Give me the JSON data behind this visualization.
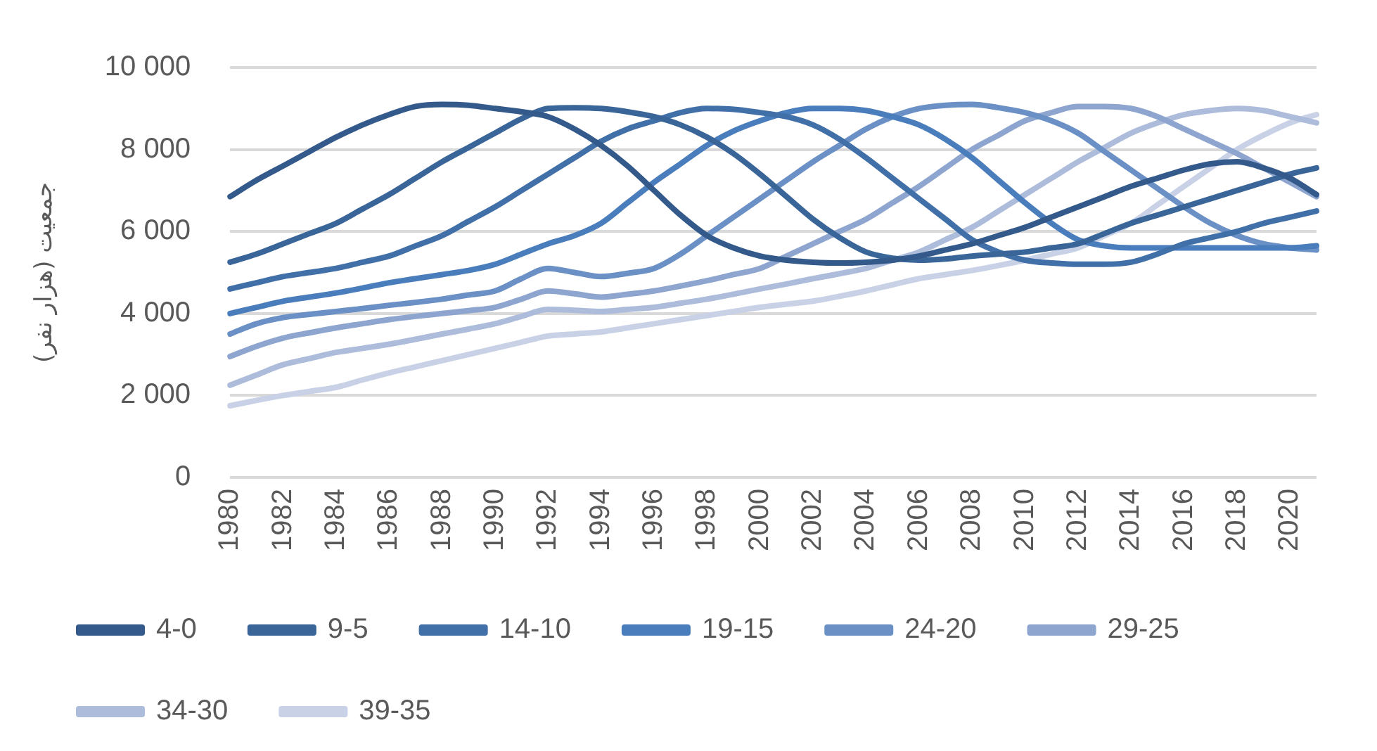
{
  "chart_data": {
    "type": "line",
    "ylabel": "جمعیت (هزار نفر)",
    "categories": [
      "1980",
      null,
      "1982",
      null,
      "1984",
      null,
      "1986",
      null,
      "1988",
      null,
      "1990",
      null,
      "1992",
      null,
      "1994",
      null,
      "1996",
      null,
      "1998",
      null,
      "2000",
      null,
      "2002",
      null,
      "2004",
      null,
      "2006",
      null,
      "2008",
      null,
      "2010",
      null,
      "2012",
      null,
      "2014",
      null,
      "2016",
      null,
      "2018",
      null,
      "2020",
      null
    ],
    "series": [
      {
        "name": "4-0",
        "color": "#335a8a",
        "values": [
          6850,
          7250,
          7600,
          7950,
          8300,
          8600,
          8850,
          9050,
          9100,
          9080,
          9000,
          8920,
          8800,
          8500,
          8100,
          7600,
          7000,
          6400,
          5900,
          5600,
          5400,
          5300,
          5250,
          5230,
          5250,
          5300,
          5400,
          5550,
          5700,
          5900,
          6100,
          6350,
          6600,
          6850,
          7100,
          7300,
          7500,
          7650,
          7700,
          7550,
          7300,
          6900
        ]
      },
      {
        "name": "9-5",
        "color": "#3a6599",
        "values": [
          5250,
          5450,
          5700,
          5950,
          6200,
          6550,
          6900,
          7300,
          7700,
          8050,
          8400,
          8750,
          9000,
          9020,
          9000,
          8920,
          8800,
          8600,
          8300,
          7900,
          7400,
          6850,
          6300,
          5850,
          5500,
          5350,
          5300,
          5330,
          5400,
          5450,
          5500,
          5600,
          5700,
          5950,
          6200,
          6400,
          6600,
          6800,
          7000,
          7200,
          7400,
          7550
        ]
      },
      {
        "name": "14-10",
        "color": "#416fa8",
        "values": [
          4600,
          4750,
          4900,
          5000,
          5100,
          5250,
          5400,
          5650,
          5900,
          6250,
          6600,
          7000,
          7400,
          7800,
          8200,
          8500,
          8700,
          8900,
          9000,
          8980,
          8900,
          8800,
          8600,
          8250,
          7800,
          7300,
          6800,
          6300,
          5800,
          5500,
          5300,
          5230,
          5200,
          5200,
          5250,
          5450,
          5700,
          5850,
          6000,
          6200,
          6350,
          6500
        ]
      },
      {
        "name": "19-15",
        "color": "#4a7dbc",
        "values": [
          4000,
          4150,
          4300,
          4400,
          4500,
          4620,
          4750,
          4850,
          4950,
          5050,
          5200,
          5450,
          5700,
          5900,
          6200,
          6700,
          7200,
          7650,
          8100,
          8450,
          8700,
          8900,
          9000,
          9000,
          8950,
          8800,
          8600,
          8250,
          7800,
          7250,
          6700,
          6200,
          5800,
          5650,
          5600,
          5600,
          5600,
          5600,
          5600,
          5600,
          5600,
          5650
        ]
      },
      {
        "name": "24-20",
        "color": "#6a90c6",
        "values": [
          3500,
          3750,
          3900,
          3980,
          4050,
          4120,
          4200,
          4270,
          4350,
          4450,
          4550,
          4850,
          5100,
          5000,
          4900,
          4980,
          5100,
          5450,
          5900,
          6350,
          6800,
          7250,
          7700,
          8100,
          8500,
          8800,
          9000,
          9080,
          9100,
          9020,
          8900,
          8700,
          8400,
          7950,
          7500,
          7050,
          6600,
          6200,
          5900,
          5700,
          5600,
          5550
        ]
      },
      {
        "name": "29-25",
        "color": "#8ea6cf",
        "values": [
          2950,
          3200,
          3400,
          3530,
          3650,
          3750,
          3850,
          3930,
          4000,
          4070,
          4150,
          4350,
          4550,
          4480,
          4400,
          4470,
          4550,
          4670,
          4800,
          4950,
          5100,
          5400,
          5700,
          6000,
          6300,
          6700,
          7100,
          7550,
          8000,
          8350,
          8700,
          8900,
          9050,
          9050,
          9000,
          8800,
          8500,
          8200,
          7900,
          7550,
          7200,
          6850
        ]
      },
      {
        "name": "34-30",
        "color": "#adbcdb",
        "values": [
          2250,
          2500,
          2750,
          2900,
          3050,
          3150,
          3250,
          3370,
          3500,
          3620,
          3750,
          3930,
          4100,
          4080,
          4050,
          4100,
          4150,
          4250,
          4350,
          4470,
          4600,
          4720,
          4850,
          4970,
          5100,
          5300,
          5500,
          5800,
          6100,
          6500,
          6900,
          7300,
          7700,
          8050,
          8400,
          8650,
          8850,
          8950,
          9000,
          8950,
          8800,
          8650
        ]
      },
      {
        "name": "39-35",
        "color": "#c8d1e5",
        "values": [
          1750,
          1880,
          2000,
          2100,
          2200,
          2380,
          2550,
          2700,
          2850,
          3000,
          3150,
          3300,
          3450,
          3500,
          3550,
          3650,
          3750,
          3850,
          3950,
          4050,
          4150,
          4230,
          4300,
          4420,
          4550,
          4700,
          4850,
          4950,
          5050,
          5170,
          5300,
          5450,
          5600,
          5900,
          6200,
          6650,
          7100,
          7550,
          8000,
          8350,
          8650,
          8850
        ]
      }
    ],
    "ylim": [
      0,
      10000
    ],
    "yticks": [
      0,
      {
        "value": 2000,
        "label": "2 000"
      },
      {
        "value": 4000,
        "label": "4 000"
      },
      {
        "value": 6000,
        "label": "6 000"
      },
      {
        "value": 8000,
        "label": "8 000"
      },
      {
        "value": 10000,
        "label": "10 000"
      }
    ],
    "grid": "y",
    "legend": "bottom",
    "marker": "none",
    "line_style": "solid"
  }
}
